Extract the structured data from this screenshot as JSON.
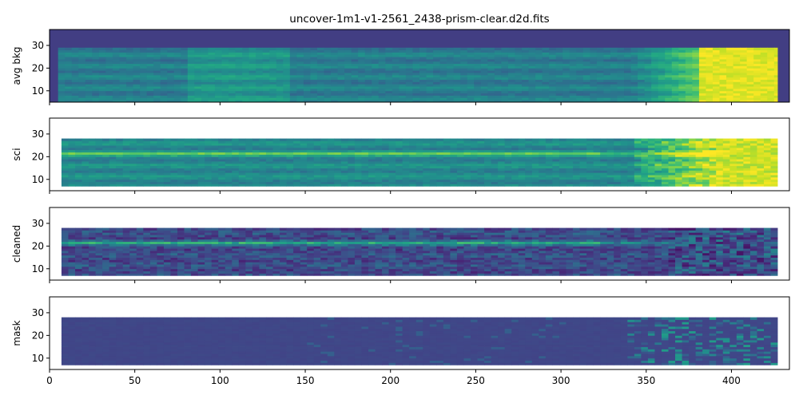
{
  "chart_data": {
    "type": "heatmap",
    "title": "uncover-1m1-v1-2561_2438-prism-clear.d2d.fits",
    "colormap": "viridis",
    "xlim": [
      0,
      434
    ],
    "ylim": [
      5,
      37
    ],
    "xticks": [
      0,
      50,
      100,
      150,
      200,
      250,
      300,
      350,
      400
    ],
    "yticks": [
      10,
      20,
      30
    ],
    "sharex": true,
    "spectrum_trace_y": 21,
    "panels": [
      {
        "ylabel": "avg bkg",
        "description_level": "background",
        "x_extent": [
          5,
          427
        ],
        "y_extent": [
          5,
          29
        ]
      },
      {
        "ylabel": "sci",
        "description_level": "science",
        "x_extent": [
          7,
          427
        ],
        "y_extent": [
          7,
          28
        ]
      },
      {
        "ylabel": "cleaned",
        "description_level": "cleaned",
        "x_extent": [
          7,
          427
        ],
        "y_extent": [
          7,
          28
        ]
      },
      {
        "ylabel": "mask",
        "description_level": "mask",
        "x_extent": [
          7,
          427
        ],
        "y_extent": [
          7,
          28
        ]
      }
    ]
  }
}
